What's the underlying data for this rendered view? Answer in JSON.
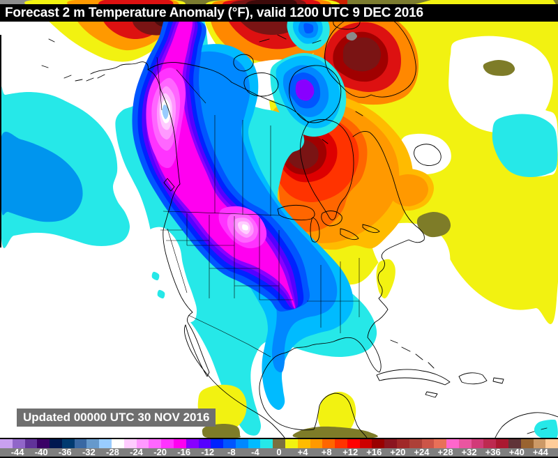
{
  "title_bar": {
    "title": "Forecast 2 m Temperature Anomaly (°F), valid 1200 UTC 9 DEC 2016"
  },
  "update_stamp": {
    "text": "Updated 00000 UTC 30 NOV 2016"
  },
  "colorbar": {
    "units": "°F",
    "tick_labels": [
      "-44",
      "-40",
      "-36",
      "-32",
      "-28",
      "-24",
      "-20",
      "-16",
      "-12",
      "-8",
      "-4",
      "0",
      "+4",
      "+8",
      "+12",
      "+16",
      "+20",
      "+24",
      "+28",
      "+32",
      "+36",
      "+40",
      "+44"
    ],
    "segment_colors": [
      "#c9a0f0",
      "#9166c9",
      "#613399",
      "#3a0066",
      "#001850",
      "#003a70",
      "#3968a3",
      "#6699cc",
      "#99ccff",
      "#ffffff",
      "#ffccff",
      "#ff99ff",
      "#ff66ff",
      "#ff33ff",
      "#ff00f0",
      "#8800ff",
      "#5500ff",
      "#0022ff",
      "#0055ff",
      "#0088ff",
      "#00bbff",
      "#26e8e8",
      "#7a7040",
      "#f2f211",
      "#ffbb00",
      "#ff9900",
      "#ff6600",
      "#ff3300",
      "#ff0000",
      "#cc0000",
      "#990000",
      "#8b1520",
      "#a02828",
      "#ad4038",
      "#cc5548",
      "#e87058",
      "#ff66cc",
      "#ea55a0",
      "#d13a78",
      "#bd2a50",
      "#aa1830",
      "#603338",
      "#996330",
      "#cc9966",
      "#ffcc99"
    ],
    "strip_background": "#7f7f7f",
    "label_text_color": "#ffffff"
  }
}
